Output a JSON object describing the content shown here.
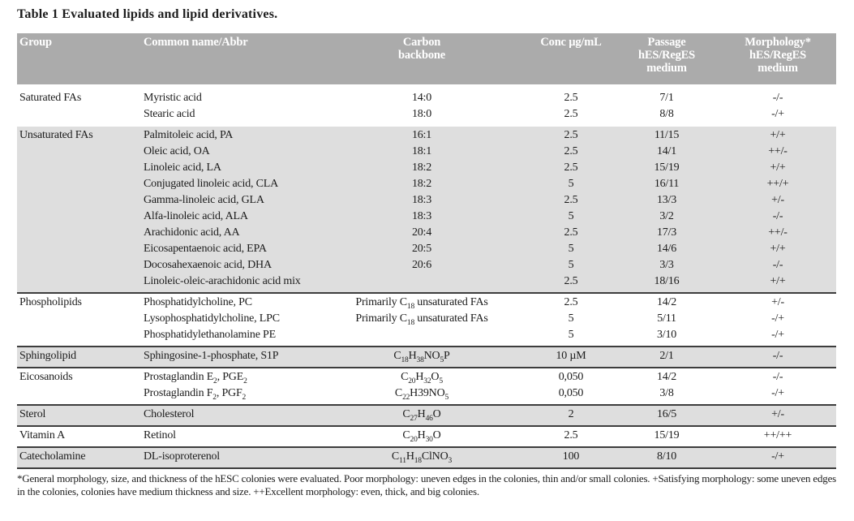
{
  "title": "Table 1 Evaluated lipids and lipid derivatives.",
  "table": {
    "columns": [
      {
        "label": "Group"
      },
      {
        "label": "Common name/Abbr"
      },
      {
        "label": "Carbon\nbackbone"
      },
      {
        "label": "Conc µg/mL"
      },
      {
        "label": "Passage\nhES/RegES\nmedium"
      },
      {
        "label": "Morphology*\nhES/RegES\nmedium"
      }
    ],
    "groups": [
      {
        "name": "Saturated FAs",
        "shaded": false,
        "divider_above": false,
        "rows": [
          {
            "name": "Myristic acid",
            "backbone": "14:0",
            "conc": "2.5",
            "passage": "7/1",
            "morphology": "-/-"
          },
          {
            "name": "Stearic acid",
            "backbone": "18:0",
            "conc": "2.5",
            "passage": "8/8",
            "morphology": "-/+"
          }
        ]
      },
      {
        "name": "Unsaturated FAs",
        "shaded": true,
        "divider_above": false,
        "rows": [
          {
            "name": "Palmitoleic acid, PA",
            "backbone": "16:1",
            "conc": "2.5",
            "passage": "11/15",
            "morphology": "+/+"
          },
          {
            "name": "Oleic acid, OA",
            "backbone": "18:1",
            "conc": "2.5",
            "passage": "14/1",
            "morphology": "++/-"
          },
          {
            "name": "Linoleic acid, LA",
            "backbone": "18:2",
            "conc": "2.5",
            "passage": "15/19",
            "morphology": "+/+"
          },
          {
            "name": "Conjugated linoleic acid, CLA",
            "backbone": "18:2",
            "conc": "5",
            "passage": "16/11",
            "morphology": "++/+"
          },
          {
            "name": "Gamma-linoleic acid, GLA",
            "backbone": "18:3",
            "conc": "2.5",
            "passage": "13/3",
            "morphology": "+/-"
          },
          {
            "name": "Alfa-linoleic acid, ALA",
            "backbone": "18:3",
            "conc": "5",
            "passage": "3/2",
            "morphology": "-/-"
          },
          {
            "name": "Arachidonic acid, AA",
            "backbone": "20:4",
            "conc": "2.5",
            "passage": "17/3",
            "morphology": "++/-"
          },
          {
            "name": "Eicosapentaenoic acid, EPA",
            "backbone": "20:5",
            "conc": "5",
            "passage": "14/6",
            "morphology": "+/+"
          },
          {
            "name": "Docosahexaenoic acid, DHA",
            "backbone": "20:6",
            "conc": "5",
            "passage": "3/3",
            "morphology": "-/-"
          },
          {
            "name": "Linoleic-oleic-arachidonic acid mix",
            "backbone": "",
            "conc": "2.5",
            "passage": "18/16",
            "morphology": "+/+"
          }
        ]
      },
      {
        "name": "Phospholipids",
        "shaded": false,
        "divider_above": true,
        "rows": [
          {
            "name": "Phosphatidylcholine, PC",
            "backbone": "Primarily C{18} unsaturated FAs",
            "conc": "2.5",
            "passage": "14/2",
            "morphology": "+/-"
          },
          {
            "name": "Lysophosphatidylcholine, LPC",
            "backbone": "Primarily C{18} unsaturated FAs",
            "conc": "5",
            "passage": "5/11",
            "morphology": "-/+"
          },
          {
            "name": "Phosphatidylethanolamine PE",
            "backbone": "",
            "conc": "5",
            "passage": "3/10",
            "morphology": "-/+"
          }
        ]
      },
      {
        "name": "Sphingolipid",
        "shaded": true,
        "divider_above": true,
        "rows": [
          {
            "name": "Sphingosine-1-phosphate, S1P",
            "backbone": "C{18}H{38}NO{5}P",
            "conc": "10 µM",
            "passage": "2/1",
            "morphology": "-/-"
          }
        ]
      },
      {
        "name": "Eicosanoids",
        "shaded": false,
        "divider_above": true,
        "rows": [
          {
            "name": "Prostaglandin E{2}, PGE{2}",
            "backbone": "C{20}H{32}O{5}",
            "conc": "0,050",
            "passage": "14/2",
            "morphology": "-/-"
          },
          {
            "name": "Prostaglandin F{2}, PGF{2}",
            "backbone": "C{22}H39NO{5}",
            "conc": "0,050",
            "passage": "3/8",
            "morphology": "-/+"
          }
        ]
      },
      {
        "name": "Sterol",
        "shaded": true,
        "divider_above": true,
        "rows": [
          {
            "name": "Cholesterol",
            "backbone": "C{27}H{46}O",
            "conc": "2",
            "passage": "16/5",
            "morphology": "+/-"
          }
        ]
      },
      {
        "name": "Vitamin A",
        "shaded": false,
        "divider_above": true,
        "rows": [
          {
            "name": "Retinol",
            "backbone": "C{20}H{30}O",
            "conc": "2.5",
            "passage": "15/19",
            "morphology": "++/++"
          }
        ]
      },
      {
        "name": "Catecholamine",
        "shaded": true,
        "divider_above": true,
        "rows": [
          {
            "name": "DL-isoproterenol",
            "backbone": "C{11}H{18}ClNO{3}",
            "conc": "100",
            "passage": "8/10",
            "morphology": "-/+"
          }
        ]
      }
    ]
  },
  "footnote": "*General morphology, size, and thickness of the hESC colonies were evaluated. Poor morphology: uneven edges in the colonies, thin and/or small colonies. +Satisfying morphology: some uneven edges in the colonies, colonies have medium thickness and size. ++Excellent morphology: even, thick, and big colonies.",
  "colors": {
    "header_bg": "#ababab",
    "band_bg": "#dedede",
    "rule": "#3d3d3d",
    "text": "#1c1c1c"
  }
}
